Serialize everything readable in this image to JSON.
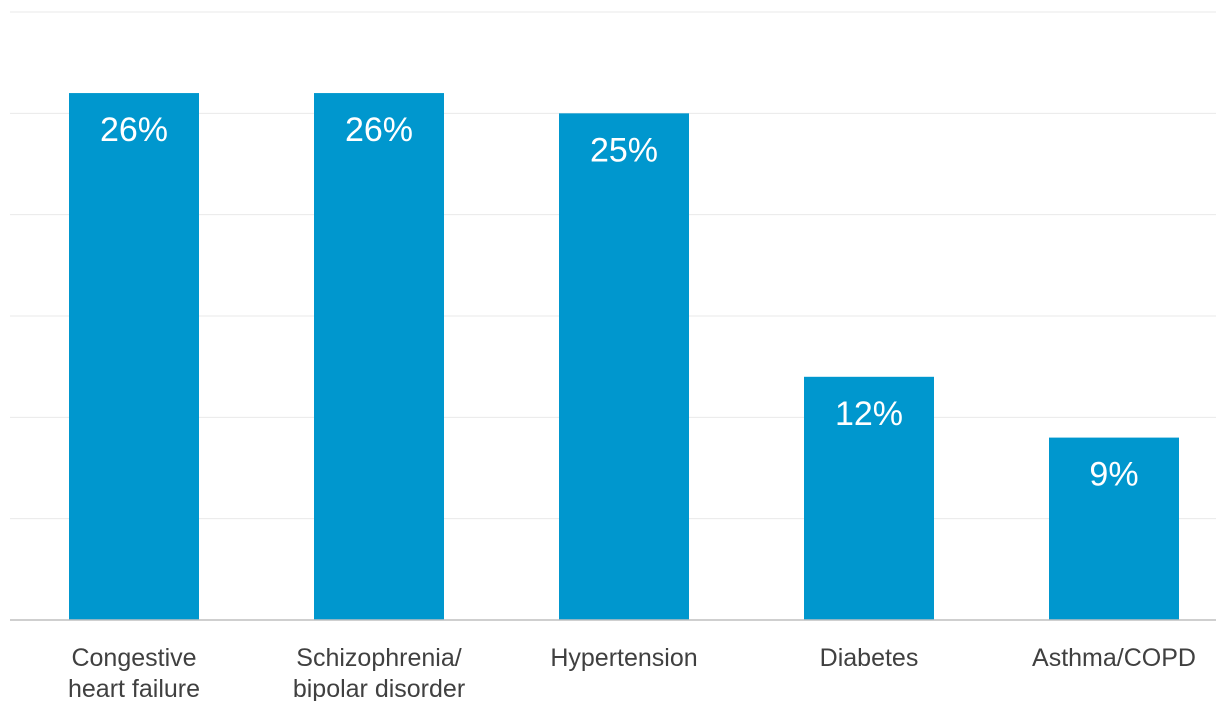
{
  "chart_data": {
    "type": "bar",
    "categories": [
      [
        "Congestive",
        "heart failure"
      ],
      [
        "Schizophrenia/",
        "bipolar disorder"
      ],
      [
        "Hypertension"
      ],
      [
        "Diabetes"
      ],
      [
        "Asthma/COPD"
      ]
    ],
    "values": [
      26,
      26,
      25,
      12,
      9
    ],
    "value_labels": [
      "26%",
      "26%",
      "25%",
      "12%",
      "9%"
    ],
    "ylim": [
      0,
      30
    ],
    "y_grid_step": 5,
    "grid": true,
    "colors": {
      "bar": "#0097ce",
      "label": "#ffffff",
      "category_text": "#404040"
    }
  }
}
